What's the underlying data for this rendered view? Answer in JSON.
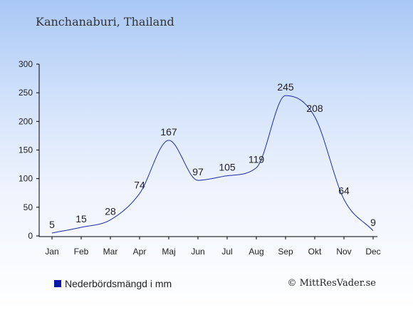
{
  "header": {
    "location": "Kanchanaburi, Thailand"
  },
  "legend": {
    "label": "Nederbördsmängd i mm"
  },
  "footer": {
    "copyright": "© MittResVader.se"
  },
  "colors": {
    "line": "#1f2aa8",
    "legend_swatch": "#0b15a8",
    "text": "#222222"
  },
  "chart_data": {
    "type": "line",
    "title": "",
    "xlabel": "",
    "ylabel": "",
    "categories": [
      "Jan",
      "Feb",
      "Mar",
      "Apr",
      "Maj",
      "Jun",
      "Jul",
      "Aug",
      "Sep",
      "Okt",
      "Nov",
      "Dec"
    ],
    "series": [
      {
        "name": "Nederbördsmängd i mm",
        "values": [
          5,
          15,
          28,
          74,
          167,
          97,
          105,
          119,
          245,
          208,
          64,
          9
        ]
      }
    ],
    "ylim": [
      0,
      300
    ],
    "yticks": [
      0,
      50,
      100,
      150,
      200,
      250,
      300
    ],
    "data_labels": true,
    "grid": false,
    "legend_position": "bottom-left"
  }
}
